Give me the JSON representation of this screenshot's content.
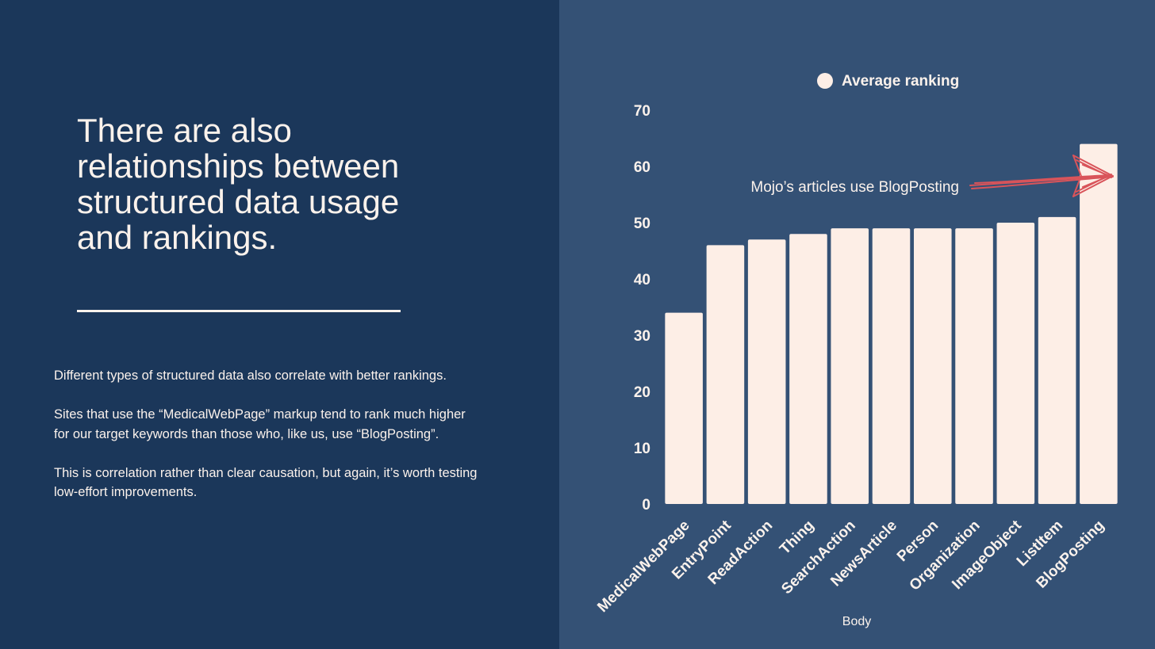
{
  "slide": {
    "headline": "There are also relationships between structured data usage and rankings.",
    "paragraphs": [
      "Different types of structured data also correlate with better rankings.",
      "Sites that use the “MedicalWebPage” markup tend to rank much higher for our target keywords than those who, like us, use “BlogPosting”.",
      "This is correlation rather than clear causation, but again, it’s worth testing low-effort improvements."
    ]
  },
  "colors": {
    "left_background": "#1b375a",
    "right_background": "#345175",
    "bar_fill": "#fdeee6",
    "text": "#fbf2ec",
    "arrow": "#d9545a"
  },
  "chart_data": {
    "type": "bar",
    "categories": [
      "MedicalWebPage",
      "EntryPoint",
      "ReadAction",
      "Thing",
      "SearchAction",
      "NewsArticle",
      "Person",
      "Organization",
      "ImageObject",
      "ListItem",
      "BlogPosting"
    ],
    "series": [
      {
        "name": "Average ranking",
        "values": [
          34,
          46,
          47,
          48,
          49,
          49,
          49,
          49,
          50,
          51,
          64
        ]
      }
    ],
    "xlabel": "Body",
    "ylabel": "",
    "ylim": [
      0,
      70
    ],
    "yticks": [
      0,
      10,
      20,
      30,
      40,
      50,
      60,
      70
    ],
    "grid": false,
    "legend": "top-center",
    "annotation": {
      "text": "Mojo’s articles use BlogPosting",
      "target_category": "BlogPosting"
    }
  }
}
